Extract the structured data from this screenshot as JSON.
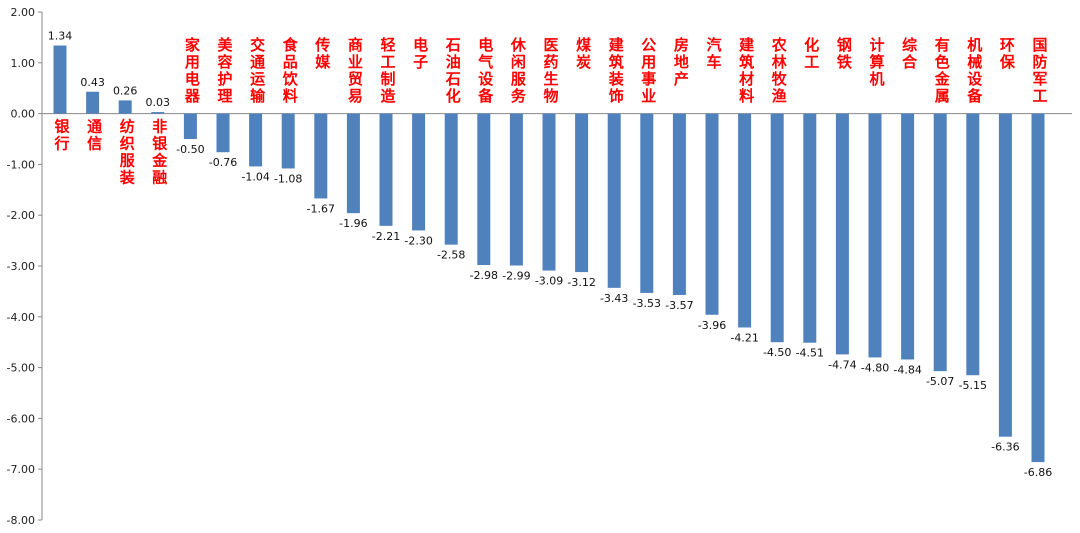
{
  "chart_data": {
    "type": "bar",
    "title": "",
    "xlabel": "",
    "ylabel": "",
    "ylim": [
      -8,
      2
    ],
    "yticks": [
      "2.00",
      "1.00",
      "0.00",
      "-1.00",
      "-2.00",
      "-3.00",
      "-4.00",
      "-5.00",
      "-6.00",
      "-7.00",
      "-8.00"
    ],
    "grid": false,
    "legend": "none",
    "bar_color": "#4F81BD",
    "label_color": "#FF0000",
    "categories": [
      "银行",
      "通信",
      "纺织服装",
      "非银金融",
      "家用电器",
      "美容护理",
      "交通运输",
      "食品饮料",
      "传媒",
      "商业贸易",
      "轻工制造",
      "电子",
      "石油石化",
      "电气设备",
      "休闲服务",
      "医药生物",
      "煤炭",
      "建筑装饰",
      "公用事业",
      "房地产",
      "汽车",
      "建筑材料",
      "农林牧渔",
      "化工",
      "钢铁",
      "计算机",
      "综合",
      "有色金属",
      "机械设备",
      "环保",
      "国防军工"
    ],
    "values": [
      1.34,
      0.43,
      0.26,
      0.03,
      -0.5,
      -0.76,
      -1.04,
      -1.08,
      -1.67,
      -1.96,
      -2.21,
      -2.3,
      -2.58,
      -2.98,
      -2.99,
      -3.09,
      -3.12,
      -3.43,
      -3.53,
      -3.57,
      -3.96,
      -4.21,
      -4.5,
      -4.51,
      -4.74,
      -4.8,
      -4.84,
      -5.07,
      -5.15,
      -6.36,
      -6.86
    ],
    "value_labels": [
      "1.34",
      "0.43",
      "0.26",
      "0.03",
      "-0.50",
      "-0.76",
      "-1.04",
      "-1.08",
      "-1.67",
      "-1.96",
      "-2.21",
      "-2.30",
      "-2.58",
      "-2.98",
      "-2.99",
      "-3.09",
      "-3.12",
      "-3.43",
      "-3.53",
      "-3.57",
      "-3.96",
      "-4.21",
      "-4.50",
      "-4.51",
      "-4.74",
      "-4.80",
      "-4.84",
      "-5.07",
      "-5.15",
      "-6.36",
      "-6.86"
    ]
  }
}
